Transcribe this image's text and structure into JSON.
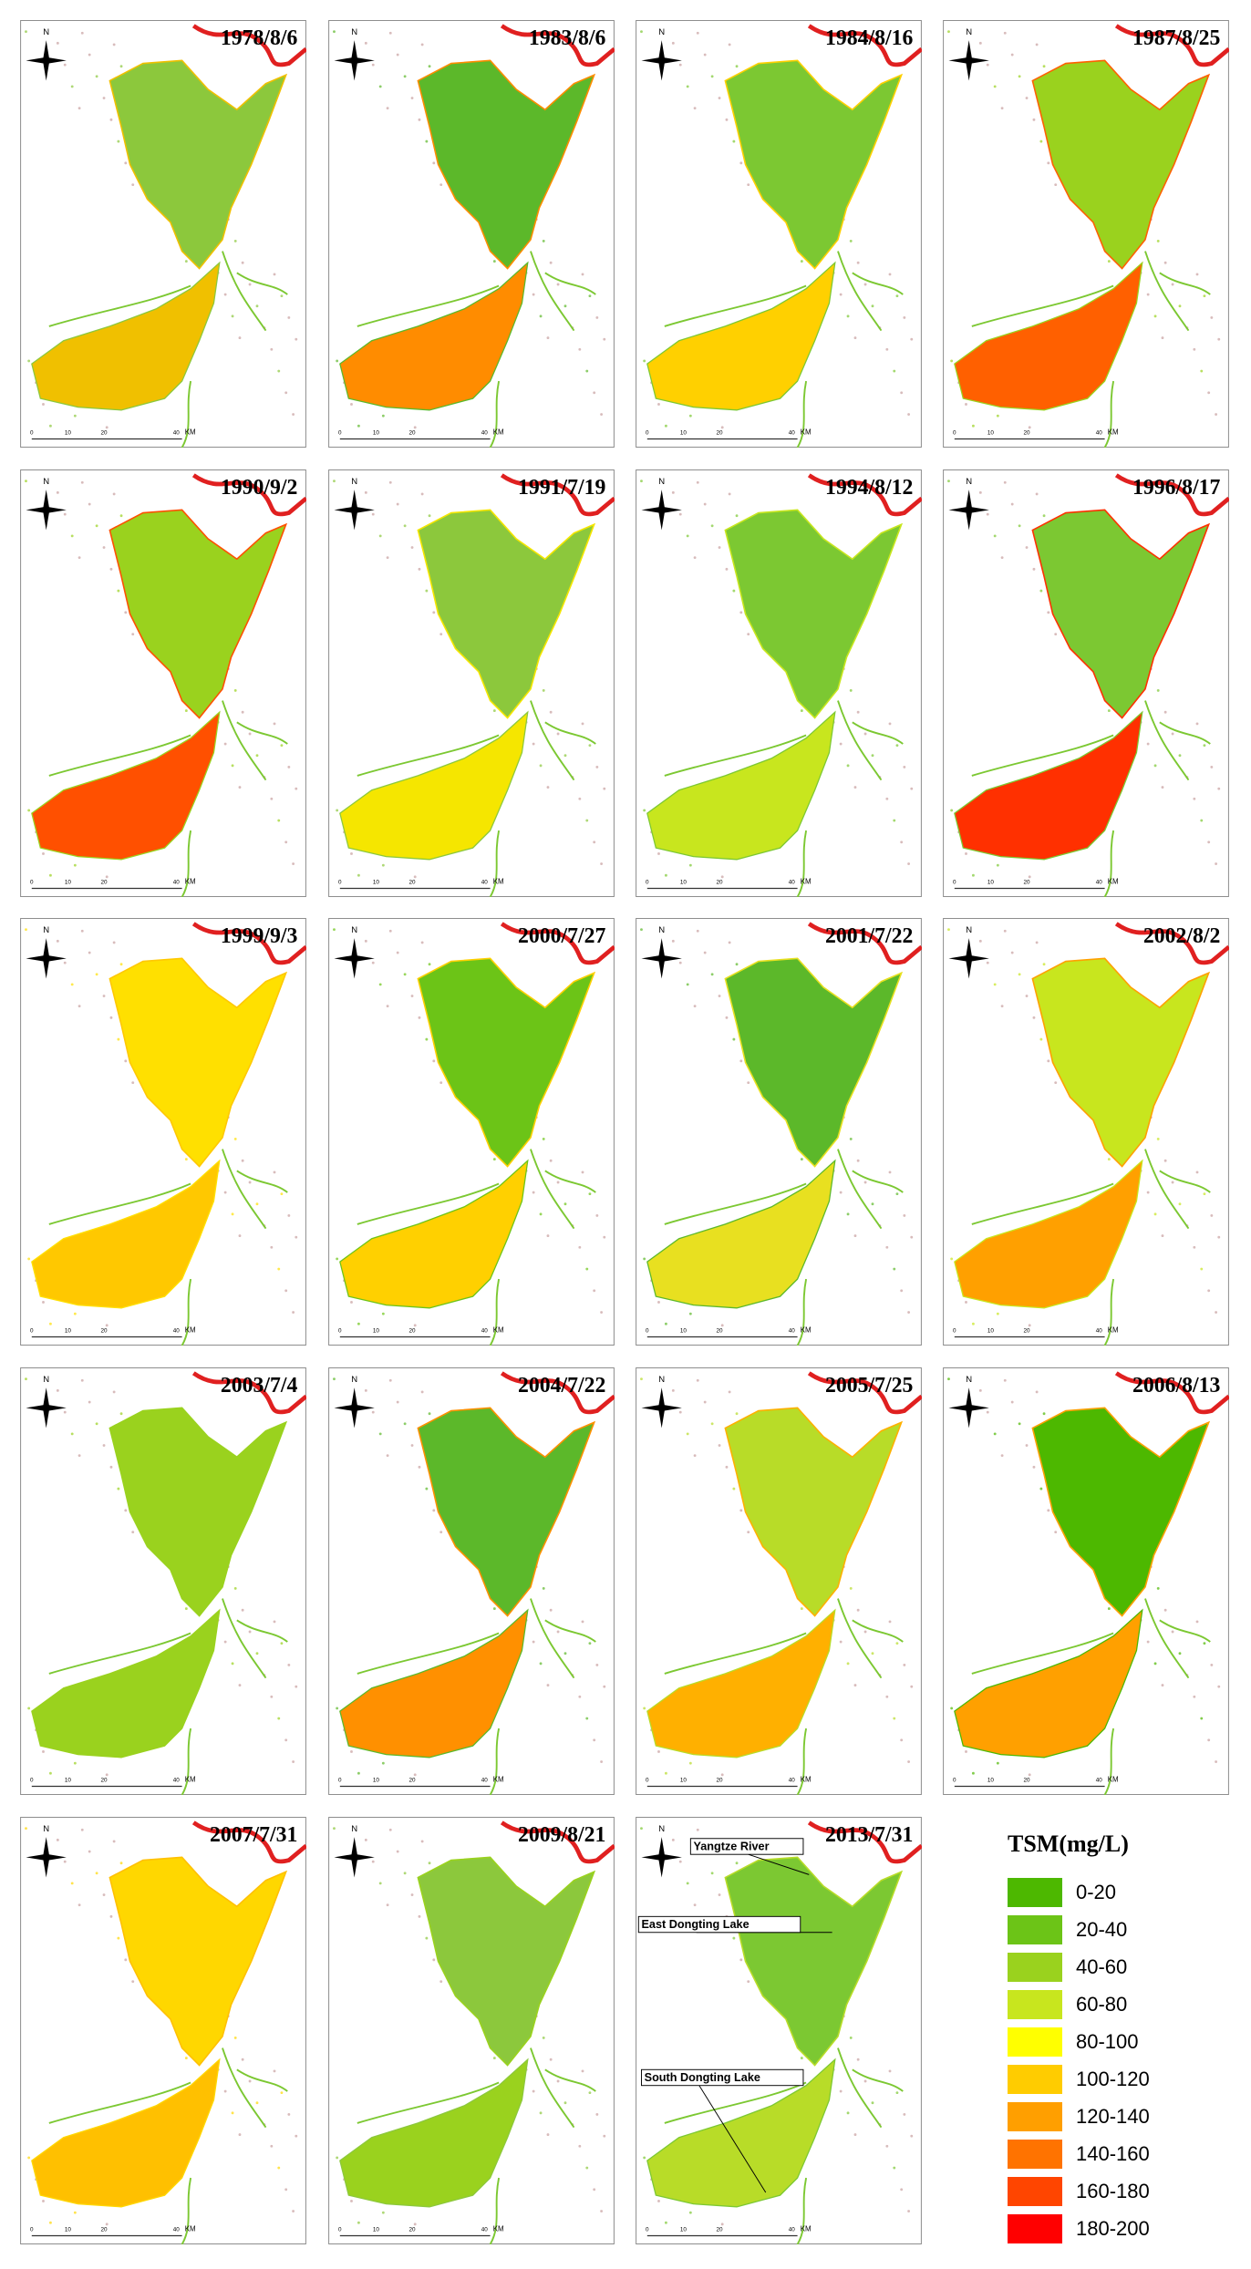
{
  "panels": [
    {
      "date": "1978/8/6",
      "north_color": "#8cc83c",
      "south_color": "#f0c000"
    },
    {
      "date": "1983/8/6",
      "north_color": "#5cb82a",
      "south_color": "#ff8c00"
    },
    {
      "date": "1984/8/16",
      "north_color": "#7cc832",
      "south_color": "#ffd000"
    },
    {
      "date": "1987/8/25",
      "north_color": "#9ad21e",
      "south_color": "#ff6000"
    },
    {
      "date": "1990/9/2",
      "north_color": "#9ad21e",
      "south_color": "#ff5000"
    },
    {
      "date": "1991/7/19",
      "north_color": "#8cc83c",
      "south_color": "#f5e600"
    },
    {
      "date": "1994/8/12",
      "north_color": "#7cc832",
      "south_color": "#c8e61e"
    },
    {
      "date": "1996/8/17",
      "north_color": "#7cc832",
      "south_color": "#ff3000"
    },
    {
      "date": "1999/9/3",
      "north_color": "#ffe000",
      "south_color": "#ffc800"
    },
    {
      "date": "2000/7/27",
      "north_color": "#6cc417",
      "south_color": "#ffd000"
    },
    {
      "date": "2001/7/22",
      "north_color": "#5cb82a",
      "south_color": "#e8e020"
    },
    {
      "date": "2002/8/2",
      "north_color": "#c8e61e",
      "south_color": "#ffa000"
    },
    {
      "date": "2003/7/4",
      "north_color": "#9ad21e",
      "south_color": "#9ad21e"
    },
    {
      "date": "2004/7/22",
      "north_color": "#5cb82a",
      "south_color": "#ff9000"
    },
    {
      "date": "2005/7/25",
      "north_color": "#b8dc28",
      "south_color": "#ffb000"
    },
    {
      "date": "2006/8/13",
      "north_color": "#4db800",
      "south_color": "#ffa000"
    },
    {
      "date": "2007/7/31",
      "north_color": "#ffd700",
      "south_color": "#ffc000"
    },
    {
      "date": "2009/8/21",
      "north_color": "#8cc83c",
      "south_color": "#9ad21e"
    },
    {
      "date": "2013/7/31",
      "north_color": "#7cc832",
      "south_color": "#b8dc28"
    }
  ],
  "compass_label": "N",
  "scale": {
    "ticks": [
      "0",
      "10",
      "20",
      "40"
    ],
    "unit": "KM"
  },
  "annotations": [
    "Yangtze River",
    "East Dongting Lake",
    "South Dongting Lake"
  ],
  "legend": {
    "title": "TSM(mg/L)",
    "classes": [
      {
        "label": "0-20",
        "color": "#4db800"
      },
      {
        "label": "20-40",
        "color": "#6cc417"
      },
      {
        "label": "40-60",
        "color": "#9ad21e"
      },
      {
        "label": "60-80",
        "color": "#c8e61e"
      },
      {
        "label": "80-100",
        "color": "#ffff00"
      },
      {
        "label": "100-120",
        "color": "#ffcc00"
      },
      {
        "label": "120-140",
        "color": "#ff9f00"
      },
      {
        "label": "140-160",
        "color": "#ff7300"
      },
      {
        "label": "160-180",
        "color": "#ff4500"
      },
      {
        "label": "180-200",
        "color": "#ff0000"
      }
    ]
  }
}
